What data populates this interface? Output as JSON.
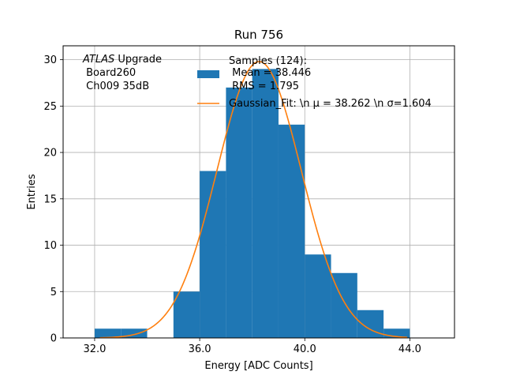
{
  "chart_data": {
    "type": "bar",
    "title": "Run 756",
    "xlabel": "Energy [ADC Counts]",
    "ylabel": "Entries",
    "xlim": [
      30.8,
      45.7
    ],
    "ylim": [
      0,
      31.5
    ],
    "xticks": [
      32.0,
      36.0,
      40.0,
      44.0
    ],
    "xtick_labels": [
      "32.0",
      "36.0",
      "40.0",
      "44.0"
    ],
    "yticks": [
      0,
      5,
      10,
      15,
      20,
      25,
      30
    ],
    "ytick_labels": [
      "0",
      "5",
      "10",
      "15",
      "20",
      "25",
      "30"
    ],
    "grid": true,
    "bin_edges": [
      32,
      33,
      34,
      35,
      36,
      37,
      38,
      39,
      40,
      41,
      42,
      43,
      44
    ],
    "counts": [
      1,
      1,
      0,
      5,
      18,
      27,
      29,
      23,
      9,
      7,
      3,
      1
    ],
    "bar_color": "#1f77b4",
    "fit": {
      "mu": 38.262,
      "sigma": 1.604,
      "amplitude": 29.8,
      "x_range": [
        32.2,
        43.9
      ],
      "color": "#ff7f0e"
    },
    "legend": {
      "placement": "upper-center",
      "entries": [
        {
          "label_lines": [
            "Samples (124):",
            " Mean = 38.446",
            " RMS = 1.795"
          ]
        },
        {
          "label": "Gaussian_Fit: \\n μ = 38.262 \\n σ=1.604"
        }
      ]
    },
    "annotation": {
      "italic": "ATLAS",
      "rest": " Upgrade",
      "lines": [
        " Board260",
        " Ch009 35dB"
      ]
    }
  }
}
